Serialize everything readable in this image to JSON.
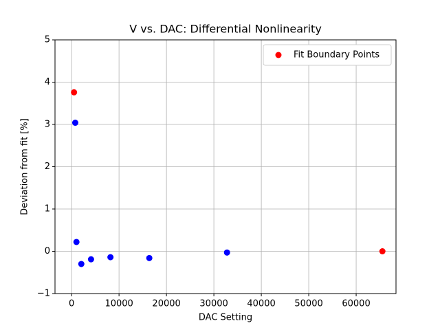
{
  "chart_data": {
    "type": "scatter",
    "title": "V vs. DAC: Differential Nonlinearity",
    "x_label": "DAC Setting",
    "y_label": "Deviation from fit [%]",
    "xlim": [
      -3500,
      68400
    ],
    "ylim": [
      -1,
      5
    ],
    "xticks": [
      0,
      10000,
      20000,
      30000,
      40000,
      50000,
      60000
    ],
    "yticks": [
      {
        "value": -1,
        "label": "−1"
      },
      0,
      1,
      2,
      3,
      4,
      5
    ],
    "grid": true,
    "legend": "upper right",
    "series": [
      {
        "color": "#0000ff",
        "x": [
          768,
          1024,
          2048,
          4096,
          8192,
          16384,
          32768
        ],
        "values": [
          3.04,
          0.22,
          -0.3,
          -0.19,
          -0.14,
          -0.16,
          -0.03
        ]
      },
      {
        "name": "Fit Boundary Points",
        "color": "#ff0000",
        "x": [
          512,
          65535
        ],
        "values": [
          3.76,
          0
        ]
      }
    ]
  }
}
